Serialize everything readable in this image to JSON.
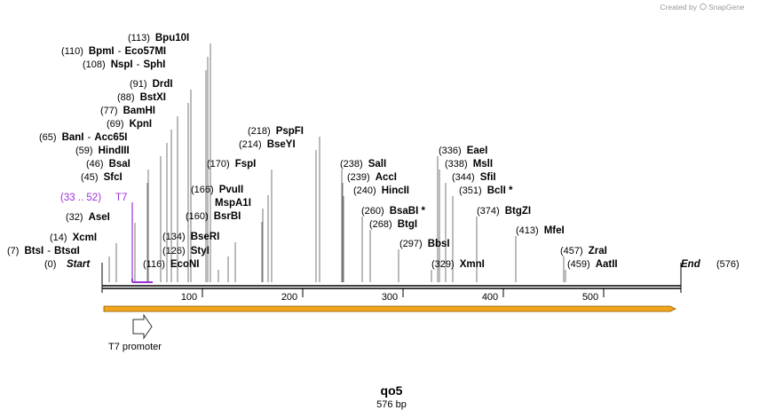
{
  "credit": {
    "prefix": "Created by",
    "brand": "SnapGene"
  },
  "plasmid": {
    "name": "qo5",
    "length_label": "576 bp",
    "length": 576
  },
  "ends": {
    "start": {
      "label": "Start",
      "pos": "(0)"
    },
    "end": {
      "label": "End",
      "pos": "(576)"
    }
  },
  "ticks": [
    "100",
    "200",
    "300",
    "400",
    "500"
  ],
  "enzymes": [
    {
      "pos": "(113)",
      "names": [
        "Bpu10I"
      ]
    },
    {
      "pos": "(110)",
      "names": [
        "BpmI",
        "Eco57MI"
      ]
    },
    {
      "pos": "(108)",
      "names": [
        "NspI",
        "SphI"
      ]
    },
    {
      "pos": "(91)",
      "names": [
        "DrdI"
      ]
    },
    {
      "pos": "(88)",
      "names": [
        "BstXI"
      ]
    },
    {
      "pos": "(77)",
      "names": [
        "BamHI"
      ]
    },
    {
      "pos": "(69)",
      "names": [
        "KpnI"
      ]
    },
    {
      "pos": "(65)",
      "names": [
        "BanI",
        "Acc65I"
      ]
    },
    {
      "pos": "(59)",
      "names": [
        "HindIII"
      ]
    },
    {
      "pos": "(46)",
      "names": [
        "BsaI"
      ]
    },
    {
      "pos": "(45)",
      "names": [
        "SfcI"
      ]
    },
    {
      "pos": "(32)",
      "names": [
        "AseI"
      ]
    },
    {
      "pos": "(14)",
      "names": [
        "XcmI"
      ]
    },
    {
      "pos": "(7)",
      "names": [
        "BtsI",
        "BtsαI"
      ]
    },
    {
      "pos": "(218)",
      "names": [
        "PspFI"
      ]
    },
    {
      "pos": "(214)",
      "names": [
        "BseYI"
      ]
    },
    {
      "pos": "(170)",
      "names": [
        "FspI"
      ]
    },
    {
      "pos": "(166)",
      "names": [
        "PvuII"
      ]
    },
    {
      "pos": "",
      "names": [
        "MspA1I"
      ]
    },
    {
      "pos": "(160)",
      "names": [
        "BsrBI"
      ]
    },
    {
      "pos": "(134)",
      "names": [
        "BseRI"
      ]
    },
    {
      "pos": "(126)",
      "names": [
        "StyI"
      ]
    },
    {
      "pos": "(116)",
      "names": [
        "EcoNI"
      ]
    },
    {
      "pos": "(238)",
      "names": [
        "SalI"
      ]
    },
    {
      "pos": "(239)",
      "names": [
        "AccI"
      ]
    },
    {
      "pos": "(240)",
      "names": [
        "HincII"
      ]
    },
    {
      "pos": "(260)",
      "names": [
        "BsaBI *"
      ]
    },
    {
      "pos": "(268)",
      "names": [
        "BtgI"
      ]
    },
    {
      "pos": "(297)",
      "names": [
        "BbsI"
      ]
    },
    {
      "pos": "(336)",
      "names": [
        "EaeI"
      ]
    },
    {
      "pos": "(338)",
      "names": [
        "MslI"
      ]
    },
    {
      "pos": "(344)",
      "names": [
        "SfiI"
      ]
    },
    {
      "pos": "(351)",
      "names": [
        "BclI *"
      ]
    },
    {
      "pos": "(329)",
      "names": [
        "XmnI"
      ]
    },
    {
      "pos": "(374)",
      "names": [
        "BtgZI"
      ]
    },
    {
      "pos": "(413)",
      "names": [
        "MfeI"
      ]
    },
    {
      "pos": "(457)",
      "names": [
        "ZraI"
      ]
    },
    {
      "pos": "(459)",
      "names": [
        "AatII"
      ]
    }
  ],
  "primer_feature": {
    "range": "(33 .. 52)",
    "label": "T7",
    "color": "#9b30d9"
  },
  "promoter": {
    "label": "T7 promoter"
  },
  "colors": {
    "orf_fill": "#f2a51a",
    "orf_stroke": "#8a5a00",
    "primer": "#9b30d9"
  }
}
